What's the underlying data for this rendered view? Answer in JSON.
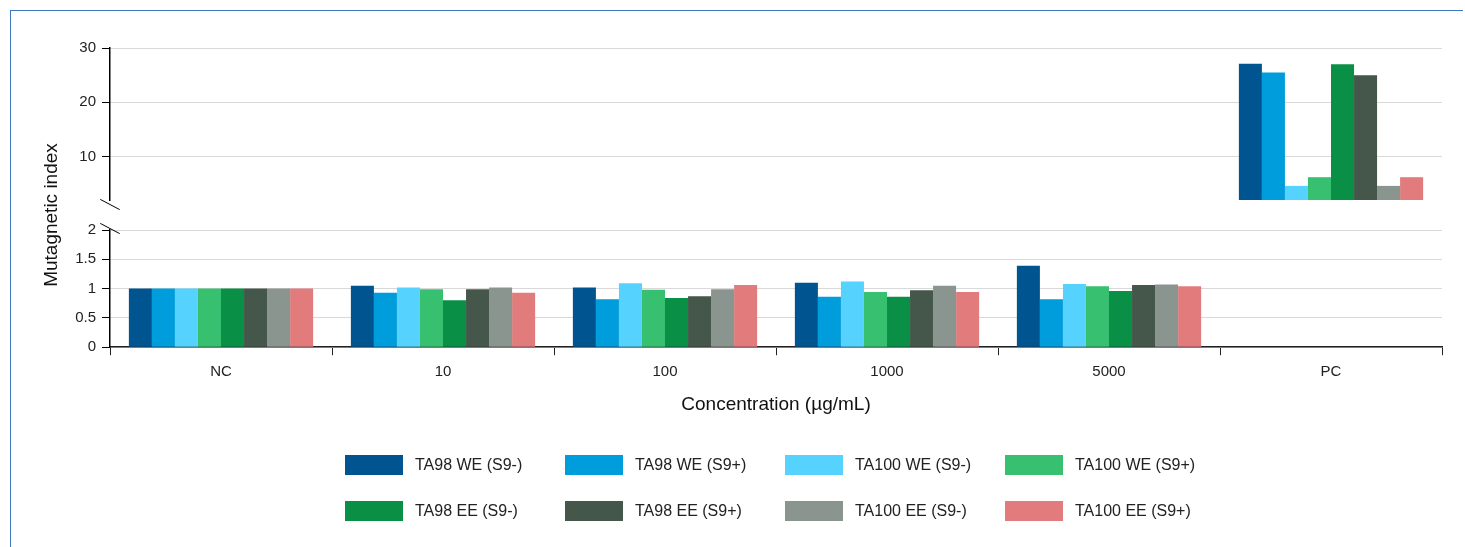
{
  "chart_data": [
    {
      "type": "bar",
      "ylabel": "Mutagnetic index",
      "categories": [
        null,
        null,
        null,
        null,
        null,
        null
      ],
      "ylim": [
        2,
        30
      ],
      "yticks": [
        30,
        20,
        10
      ],
      "grid": "y",
      "tick_labels": "y",
      "legend": false,
      "series": [
        {
          "color": "#00548f",
          "values": [
            null,
            null,
            null,
            null,
            null,
            27.1
          ]
        },
        {
          "color": "#009ddc",
          "values": [
            null,
            null,
            null,
            null,
            null,
            25.5
          ]
        },
        {
          "color": "#55d3fe",
          "values": [
            null,
            null,
            null,
            null,
            null,
            4.6
          ]
        },
        {
          "color": "#37c070",
          "values": [
            null,
            null,
            null,
            null,
            null,
            6.2
          ]
        },
        {
          "color": "#0a8f47",
          "values": [
            null,
            null,
            null,
            null,
            null,
            27.0
          ]
        },
        {
          "color": "#45564a",
          "values": [
            null,
            null,
            null,
            null,
            null,
            25.0
          ]
        },
        {
          "color": "#8b958f",
          "values": [
            null,
            null,
            null,
            null,
            null,
            4.6
          ]
        },
        {
          "color": "#e17b7c",
          "values": [
            null,
            null,
            null,
            null,
            null,
            6.2
          ]
        }
      ]
    },
    {
      "type": "bar",
      "xlabel": "Concentration (µg/mL)",
      "categories": [
        "NC",
        "10",
        "100",
        "1000",
        "5000",
        "PC"
      ],
      "ylim": [
        0,
        2
      ],
      "yticks": [
        0,
        0.5,
        1,
        1.5,
        2
      ],
      "grid": "y",
      "legend": "bottom",
      "series": [
        {
          "name": "TA98 WE (S9-)",
          "color": "#00548f",
          "values": [
            1,
            1.05,
            1.02,
            1.1,
            1.39,
            null
          ]
        },
        {
          "name": "TA98 WE (S9+)",
          "color": "#009ddc",
          "values": [
            1,
            0.93,
            0.82,
            0.86,
            0.82,
            null
          ]
        },
        {
          "name": "TA100 WE (S9-)",
          "color": "#55d3fe",
          "values": [
            1,
            1.02,
            1.09,
            1.12,
            1.08,
            null
          ]
        },
        {
          "name": "TA100 WE (S9+)",
          "color": "#37c070",
          "values": [
            1,
            0.99,
            0.98,
            0.94,
            1.04,
            null
          ]
        },
        {
          "name": "TA98 EE (S9-)",
          "color": "#0a8f47",
          "values": [
            1,
            0.8,
            0.84,
            0.86,
            0.96,
            null
          ]
        },
        {
          "name": "TA98 EE (S9+)",
          "color": "#45564a",
          "values": [
            1,
            0.99,
            0.87,
            0.97,
            1.06,
            null
          ]
        },
        {
          "name": "TA100 EE (S9-)",
          "color": "#8b958f",
          "values": [
            1,
            1.02,
            0.99,
            1.05,
            1.07,
            null
          ]
        },
        {
          "name": "TA100 EE (S9+)",
          "color": "#e17b7c",
          "values": [
            1,
            0.93,
            1.06,
            0.94,
            1.04,
            null
          ]
        }
      ]
    }
  ]
}
